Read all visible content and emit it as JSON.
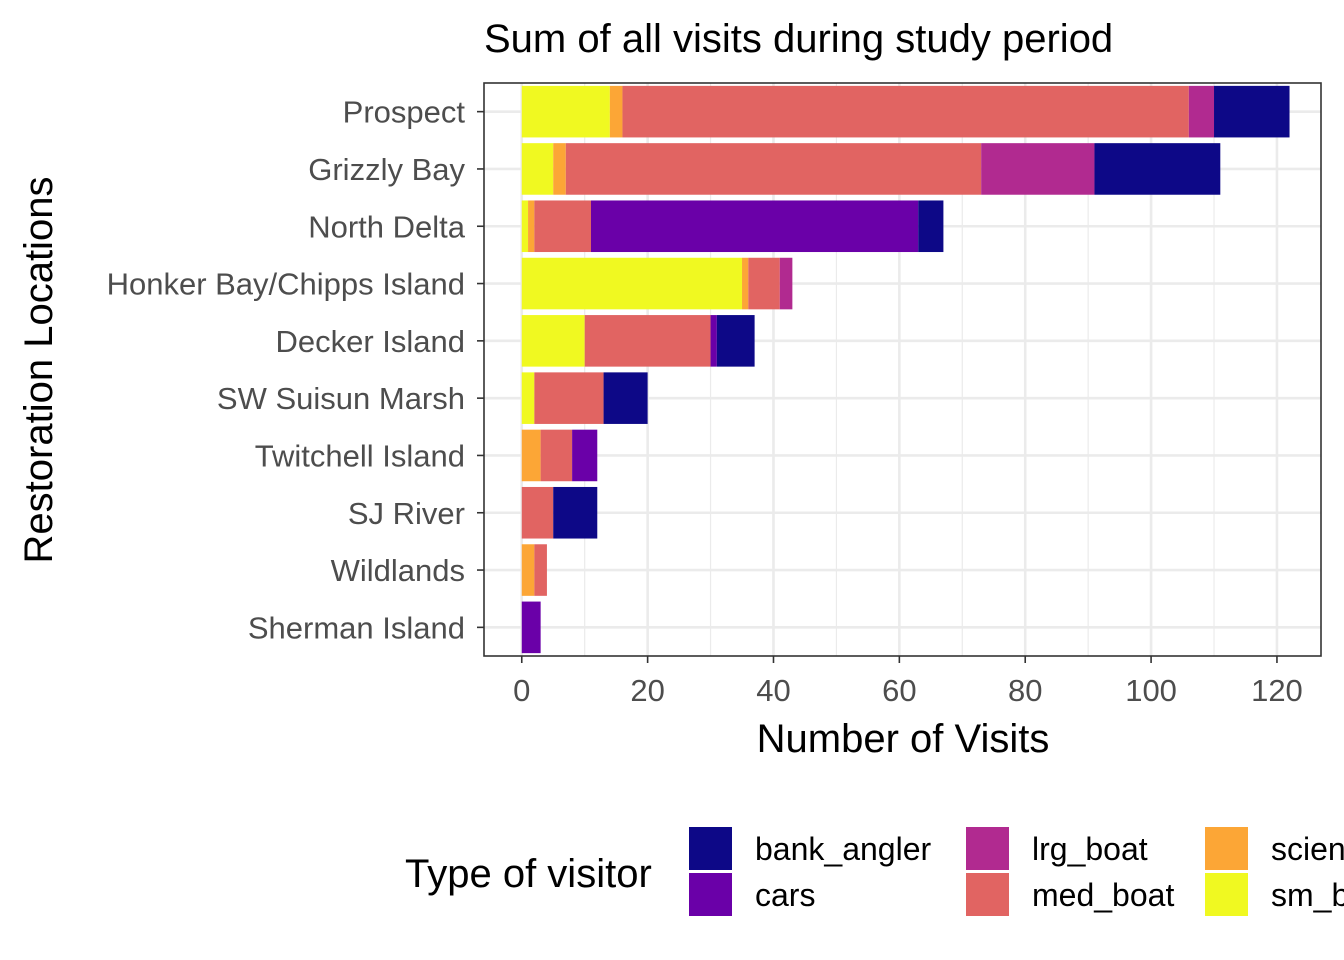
{
  "chart_data": {
    "type": "bar",
    "orientation": "horizontal",
    "stacked": true,
    "title": "Sum of all visits during study period",
    "xlabel": "Number of Visits",
    "ylabel": "Restoration Locations",
    "xlim": [
      -6,
      127
    ],
    "xticks": [
      0,
      20,
      40,
      60,
      80,
      100,
      120
    ],
    "grid": true,
    "legend_position": "bottom",
    "categories": [
      "Prospect",
      "Grizzly Bay",
      "North Delta",
      "Honker Bay/Chipps Island",
      "Decker Island",
      "SW Suisun Marsh",
      "Twitchell Island",
      "SJ River",
      "Wildlands",
      "Sherman Island"
    ],
    "series": [
      {
        "name": "sm_boat",
        "color": "#f0f921",
        "values": [
          14,
          5,
          1,
          35,
          10,
          2,
          0,
          0,
          0,
          0
        ]
      },
      {
        "name": "scientist",
        "color": "#fca636",
        "values": [
          2,
          2,
          1,
          1,
          0,
          0,
          3,
          0,
          2,
          0
        ]
      },
      {
        "name": "med_boat",
        "color": "#e16462",
        "values": [
          90,
          66,
          9,
          5,
          20,
          11,
          5,
          5,
          2,
          0
        ]
      },
      {
        "name": "lrg_boat",
        "color": "#b12a90",
        "values": [
          4,
          18,
          0,
          2,
          0,
          0,
          0,
          0,
          0,
          0
        ]
      },
      {
        "name": "cars",
        "color": "#6a00a8",
        "values": [
          0,
          0,
          52,
          0,
          1,
          0,
          4,
          0,
          0,
          3
        ]
      },
      {
        "name": "bank_angler",
        "color": "#0d0887",
        "values": [
          12,
          20,
          4,
          0,
          6,
          7,
          0,
          7,
          0,
          0
        ]
      }
    ]
  },
  "legend": {
    "title": "Type of visitor",
    "order": [
      "bank_angler",
      "cars",
      "lrg_boat",
      "med_boat",
      "scientist",
      "sm_boat"
    ]
  }
}
